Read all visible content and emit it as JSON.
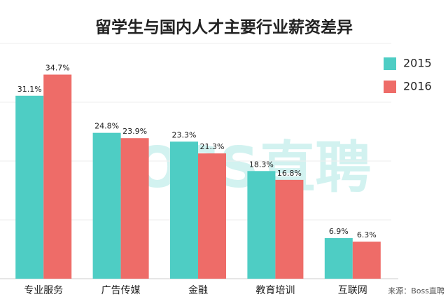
{
  "chart_data": {
    "type": "bar",
    "title": "留学生与国内人才主要行业薪资差异",
    "categories": [
      "专业服务",
      "广告传媒",
      "金融",
      "教育培训",
      "互联网"
    ],
    "series": [
      {
        "name": "2015",
        "color": "#4ecdc4",
        "values": [
          31.1,
          24.8,
          23.3,
          18.3,
          6.9
        ],
        "value_labels": [
          "31.1%",
          "24.8%",
          "23.3%",
          "18.3%",
          "6.9%"
        ]
      },
      {
        "name": "2016",
        "color": "#ee6c68",
        "values": [
          34.7,
          23.9,
          21.3,
          16.8,
          6.3
        ],
        "value_labels": [
          "34.7%",
          "23.9%",
          "21.3%",
          "16.8%",
          "6.3%"
        ]
      }
    ],
    "ylim": [
      0,
      40
    ],
    "yticks": [
      0,
      10,
      20,
      30,
      40
    ],
    "grid": true,
    "legend": "right",
    "watermark": "BOSS直聘",
    "source": "来源：Boss直聘"
  }
}
